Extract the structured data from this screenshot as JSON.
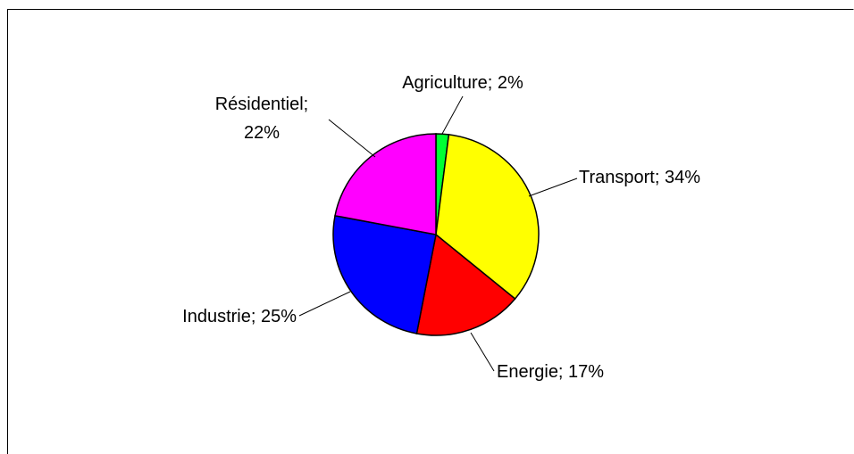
{
  "chart_data": {
    "type": "pie",
    "values": [
      2,
      34,
      17,
      25,
      22
    ],
    "value_labels": [
      "Agriculture; 2%",
      "Transport; 34%",
      "Energie; 17%",
      "Industrie; 25%",
      "Résidentiel;\n22%"
    ],
    "colors": [
      "#00ff33",
      "#ffff00",
      "#ff0000",
      "#0000ff",
      "#ff00ff"
    ]
  }
}
